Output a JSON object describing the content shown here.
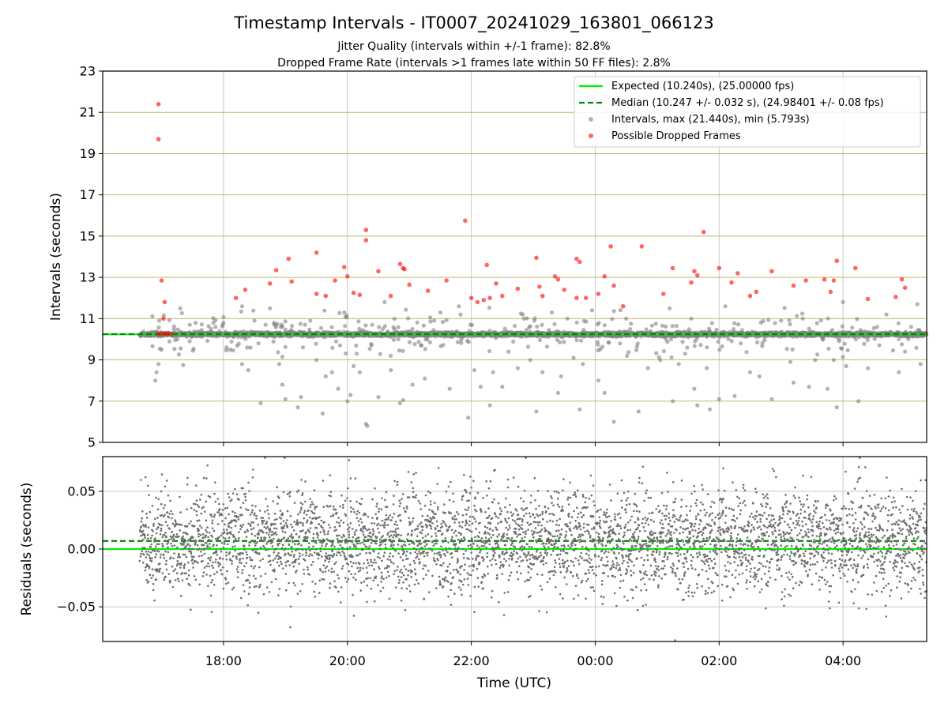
{
  "chart_data": [
    {
      "type": "scatter",
      "title": "Timestamp Intervals - IT0007_20241029_163801_066123",
      "subtitles": [
        "Jitter Quality (intervals within +/-1 frame): 82.8%",
        "Dropped Frame Rate (intervals >1 frames late within 50 FF files): 2.8%"
      ],
      "xlabel": "",
      "ylabel": "Intervals (seconds)",
      "xlim": [
        -1.95,
        11.35
      ],
      "ylim": [
        5,
        23
      ],
      "yticks": [
        5,
        7,
        9,
        11,
        13,
        15,
        17,
        19,
        21,
        23
      ],
      "ytick_labels": [
        "5",
        "7",
        "9",
        "11",
        "13",
        "15",
        "17",
        "19",
        "21",
        "23"
      ],
      "xticks_hours_after_1800": [
        0,
        2,
        4,
        6,
        8,
        10
      ],
      "grid": true,
      "legend_position": "upper right",
      "legend": [
        "Expected (10.240s), (25.00000 fps)",
        "Median (10.247 +/- 0.032 s), (24.98401 +/- 0.08 fps)",
        "Intervals, max (21.440s), min (5.793s)",
        "Possible Dropped Frames"
      ],
      "colors": {
        "expected": "#00ee00",
        "median": "#008800",
        "intervals": "#808080",
        "dropped": "#ff0000",
        "grid_horizontal": "#c8b46e",
        "grid_vertical": "#c8c8c8"
      },
      "expected_interval": 10.24,
      "median_interval": 10.247,
      "time_range_hours_after_1800": [
        -1.35,
        11.35
      ],
      "dropped_frames": [
        {
          "x": -1.05,
          "y": 21.4
        },
        {
          "x": -1.05,
          "y": 19.7
        },
        {
          "x": -1.0,
          "y": 12.85
        },
        {
          "x": -0.95,
          "y": 11.8
        },
        {
          "x": -0.97,
          "y": 11.0
        },
        {
          "x": -1.05,
          "y": 10.27
        },
        {
          "x": -1.0,
          "y": 10.27
        },
        {
          "x": -0.95,
          "y": 10.27
        },
        {
          "x": -0.9,
          "y": 10.27
        },
        {
          "x": -0.85,
          "y": 10.27
        },
        {
          "x": 0.2,
          "y": 12.0
        },
        {
          "x": 0.35,
          "y": 12.4
        },
        {
          "x": 0.75,
          "y": 12.7
        },
        {
          "x": 0.85,
          "y": 13.35
        },
        {
          "x": 1.05,
          "y": 13.9
        },
        {
          "x": 1.1,
          "y": 12.8
        },
        {
          "x": 1.5,
          "y": 14.2
        },
        {
          "x": 1.5,
          "y": 12.2
        },
        {
          "x": 1.65,
          "y": 12.1
        },
        {
          "x": 1.8,
          "y": 12.85
        },
        {
          "x": 1.95,
          "y": 13.5
        },
        {
          "x": 2.0,
          "y": 13.05
        },
        {
          "x": 2.1,
          "y": 12.25
        },
        {
          "x": 2.2,
          "y": 12.15
        },
        {
          "x": 2.3,
          "y": 15.3
        },
        {
          "x": 2.3,
          "y": 14.8
        },
        {
          "x": 2.5,
          "y": 13.3
        },
        {
          "x": 2.7,
          "y": 12.1
        },
        {
          "x": 2.85,
          "y": 13.65
        },
        {
          "x": 2.9,
          "y": 13.45
        },
        {
          "x": 2.92,
          "y": 13.4
        },
        {
          "x": 3.0,
          "y": 12.65
        },
        {
          "x": 3.3,
          "y": 12.35
        },
        {
          "x": 3.6,
          "y": 12.85
        },
        {
          "x": 3.9,
          "y": 15.75
        },
        {
          "x": 4.0,
          "y": 12.0
        },
        {
          "x": 4.1,
          "y": 11.8
        },
        {
          "x": 4.2,
          "y": 11.9
        },
        {
          "x": 4.25,
          "y": 13.6
        },
        {
          "x": 4.3,
          "y": 12.0
        },
        {
          "x": 4.4,
          "y": 12.7
        },
        {
          "x": 4.5,
          "y": 12.1
        },
        {
          "x": 4.75,
          "y": 12.45
        },
        {
          "x": 5.05,
          "y": 13.95
        },
        {
          "x": 5.1,
          "y": 12.55
        },
        {
          "x": 5.15,
          "y": 12.1
        },
        {
          "x": 5.35,
          "y": 13.05
        },
        {
          "x": 5.4,
          "y": 12.9
        },
        {
          "x": 5.5,
          "y": 12.4
        },
        {
          "x": 5.7,
          "y": 13.9
        },
        {
          "x": 5.75,
          "y": 13.75
        },
        {
          "x": 5.7,
          "y": 12.0
        },
        {
          "x": 5.85,
          "y": 12.0
        },
        {
          "x": 6.05,
          "y": 12.2
        },
        {
          "x": 6.15,
          "y": 13.05
        },
        {
          "x": 6.25,
          "y": 14.5
        },
        {
          "x": 6.3,
          "y": 12.6
        },
        {
          "x": 6.45,
          "y": 11.6
        },
        {
          "x": 6.75,
          "y": 14.5
        },
        {
          "x": 7.1,
          "y": 12.2
        },
        {
          "x": 7.25,
          "y": 13.45
        },
        {
          "x": 7.6,
          "y": 13.3
        },
        {
          "x": 7.65,
          "y": 13.1
        },
        {
          "x": 7.55,
          "y": 12.75
        },
        {
          "x": 7.75,
          "y": 15.2
        },
        {
          "x": 8.0,
          "y": 13.45
        },
        {
          "x": 8.2,
          "y": 12.75
        },
        {
          "x": 8.3,
          "y": 13.2
        },
        {
          "x": 8.5,
          "y": 12.1
        },
        {
          "x": 8.6,
          "y": 12.3
        },
        {
          "x": 8.85,
          "y": 13.3
        },
        {
          "x": 9.2,
          "y": 12.6
        },
        {
          "x": 9.4,
          "y": 12.85
        },
        {
          "x": 9.7,
          "y": 12.9
        },
        {
          "x": 9.85,
          "y": 12.85
        },
        {
          "x": 9.8,
          "y": 12.3
        },
        {
          "x": 9.9,
          "y": 13.8
        },
        {
          "x": 10.2,
          "y": 13.45
        },
        {
          "x": 10.4,
          "y": 11.95
        },
        {
          "x": 10.85,
          "y": 12.05
        },
        {
          "x": 10.95,
          "y": 12.9
        },
        {
          "x": 11.0,
          "y": 12.5
        }
      ],
      "interval_outliers": [
        {
          "x": -1.1,
          "y": 8.0
        },
        {
          "x": -1.08,
          "y": 8.4
        },
        {
          "x": -1.05,
          "y": 8.8
        },
        {
          "x": -1.0,
          "y": 9.5
        },
        {
          "x": -0.7,
          "y": 11.5
        },
        {
          "x": -0.65,
          "y": 8.75
        },
        {
          "x": -0.45,
          "y": 10.8
        },
        {
          "x": -0.2,
          "y": 10.5
        },
        {
          "x": 0.0,
          "y": 10.8
        },
        {
          "x": 0.05,
          "y": 9.6
        },
        {
          "x": 0.3,
          "y": 11.6
        },
        {
          "x": 0.3,
          "y": 8.8
        },
        {
          "x": 0.4,
          "y": 8.5
        },
        {
          "x": 0.5,
          "y": 10.9
        },
        {
          "x": 0.6,
          "y": 6.9
        },
        {
          "x": 0.75,
          "y": 11.5
        },
        {
          "x": 0.9,
          "y": 8.8
        },
        {
          "x": 0.95,
          "y": 7.8
        },
        {
          "x": 1.0,
          "y": 7.1
        },
        {
          "x": 1.2,
          "y": 6.7
        },
        {
          "x": 1.25,
          "y": 7.2
        },
        {
          "x": 1.4,
          "y": 10.9
        },
        {
          "x": 1.5,
          "y": 9.0
        },
        {
          "x": 1.6,
          "y": 6.4
        },
        {
          "x": 1.65,
          "y": 8.2
        },
        {
          "x": 1.75,
          "y": 8.4
        },
        {
          "x": 1.85,
          "y": 7.6
        },
        {
          "x": 1.95,
          "y": 11.3
        },
        {
          "x": 2.0,
          "y": 7.0
        },
        {
          "x": 2.05,
          "y": 7.3
        },
        {
          "x": 2.1,
          "y": 8.7
        },
        {
          "x": 2.15,
          "y": 9.3
        },
        {
          "x": 2.2,
          "y": 8.4
        },
        {
          "x": 2.3,
          "y": 5.9
        },
        {
          "x": 2.32,
          "y": 5.8
        },
        {
          "x": 2.4,
          "y": 10.7
        },
        {
          "x": 2.5,
          "y": 7.2
        },
        {
          "x": 2.6,
          "y": 11.8
        },
        {
          "x": 2.7,
          "y": 8.5
        },
        {
          "x": 2.85,
          "y": 6.9
        },
        {
          "x": 2.9,
          "y": 7.05
        },
        {
          "x": 3.05,
          "y": 7.8
        },
        {
          "x": 3.25,
          "y": 8.1
        },
        {
          "x": 3.4,
          "y": 10.9
        },
        {
          "x": 3.5,
          "y": 11.3
        },
        {
          "x": 3.65,
          "y": 7.6
        },
        {
          "x": 3.8,
          "y": 11.6
        },
        {
          "x": 3.95,
          "y": 6.2
        },
        {
          "x": 4.05,
          "y": 8.5
        },
        {
          "x": 4.15,
          "y": 7.7
        },
        {
          "x": 4.3,
          "y": 6.8
        },
        {
          "x": 4.35,
          "y": 8.4
        },
        {
          "x": 4.5,
          "y": 7.7
        },
        {
          "x": 4.6,
          "y": 9.4
        },
        {
          "x": 4.75,
          "y": 8.6
        },
        {
          "x": 4.85,
          "y": 11.0
        },
        {
          "x": 4.95,
          "y": 9.0
        },
        {
          "x": 5.05,
          "y": 6.5
        },
        {
          "x": 5.15,
          "y": 8.4
        },
        {
          "x": 5.3,
          "y": 11.3
        },
        {
          "x": 5.4,
          "y": 7.4
        },
        {
          "x": 5.45,
          "y": 8.2
        },
        {
          "x": 5.55,
          "y": 11.0
        },
        {
          "x": 5.65,
          "y": 9.1
        },
        {
          "x": 5.75,
          "y": 6.6
        },
        {
          "x": 5.8,
          "y": 8.8
        },
        {
          "x": 5.95,
          "y": 11.4
        },
        {
          "x": 6.05,
          "y": 8.0
        },
        {
          "x": 6.15,
          "y": 7.4
        },
        {
          "x": 6.3,
          "y": 6.0
        },
        {
          "x": 6.4,
          "y": 9.8
        },
        {
          "x": 6.5,
          "y": 11.0
        },
        {
          "x": 6.7,
          "y": 6.5
        },
        {
          "x": 6.85,
          "y": 8.6
        },
        {
          "x": 7.05,
          "y": 9.0
        },
        {
          "x": 7.2,
          "y": 11.5
        },
        {
          "x": 7.25,
          "y": 7.0
        },
        {
          "x": 7.35,
          "y": 8.8
        },
        {
          "x": 7.45,
          "y": 9.3
        },
        {
          "x": 7.55,
          "y": 11.0
        },
        {
          "x": 7.6,
          "y": 7.6
        },
        {
          "x": 7.65,
          "y": 6.8
        },
        {
          "x": 7.8,
          "y": 8.6
        },
        {
          "x": 7.85,
          "y": 6.6
        },
        {
          "x": 8.0,
          "y": 7.1
        },
        {
          "x": 8.1,
          "y": 11.6
        },
        {
          "x": 8.25,
          "y": 7.25
        },
        {
          "x": 8.35,
          "y": 9.8
        },
        {
          "x": 8.5,
          "y": 8.4
        },
        {
          "x": 8.65,
          "y": 8.2
        },
        {
          "x": 8.85,
          "y": 7.1
        },
        {
          "x": 9.0,
          "y": 10.9
        },
        {
          "x": 9.15,
          "y": 8.9
        },
        {
          "x": 9.2,
          "y": 7.9
        },
        {
          "x": 9.35,
          "y": 11.0
        },
        {
          "x": 9.45,
          "y": 7.7
        },
        {
          "x": 9.55,
          "y": 9.0
        },
        {
          "x": 9.75,
          "y": 7.6
        },
        {
          "x": 9.85,
          "y": 9.0
        },
        {
          "x": 9.9,
          "y": 6.7
        },
        {
          "x": 10.0,
          "y": 11.8
        },
        {
          "x": 10.05,
          "y": 8.7
        },
        {
          "x": 10.25,
          "y": 7.0
        },
        {
          "x": 10.4,
          "y": 8.6
        },
        {
          "x": 10.55,
          "y": 10.6
        },
        {
          "x": 10.7,
          "y": 11.2
        },
        {
          "x": 10.9,
          "y": 8.4
        },
        {
          "x": 11.0,
          "y": 9.4
        },
        {
          "x": 11.2,
          "y": 11.7
        },
        {
          "x": 11.25,
          "y": 8.8
        }
      ]
    },
    {
      "type": "scatter",
      "xlabel": "Time (UTC)",
      "ylabel": "Residuals (seconds)",
      "xlim": [
        -1.95,
        11.35
      ],
      "ylim": [
        -0.08,
        0.08
      ],
      "yticks": [
        -0.05,
        0.0,
        0.05
      ],
      "ytick_labels": [
        "−0.05",
        "0.00",
        "0.05"
      ],
      "xticks_hours_after_1800": [
        0,
        2,
        4,
        6,
        8,
        10
      ],
      "xtick_labels": [
        "18:00",
        "20:00",
        "22:00",
        "00:00",
        "02:00",
        "04:00"
      ],
      "grid": true,
      "expected_residual": 0.0,
      "median_residual": 0.007,
      "residual_spread_std": 0.022,
      "point_count": 4400
    }
  ]
}
